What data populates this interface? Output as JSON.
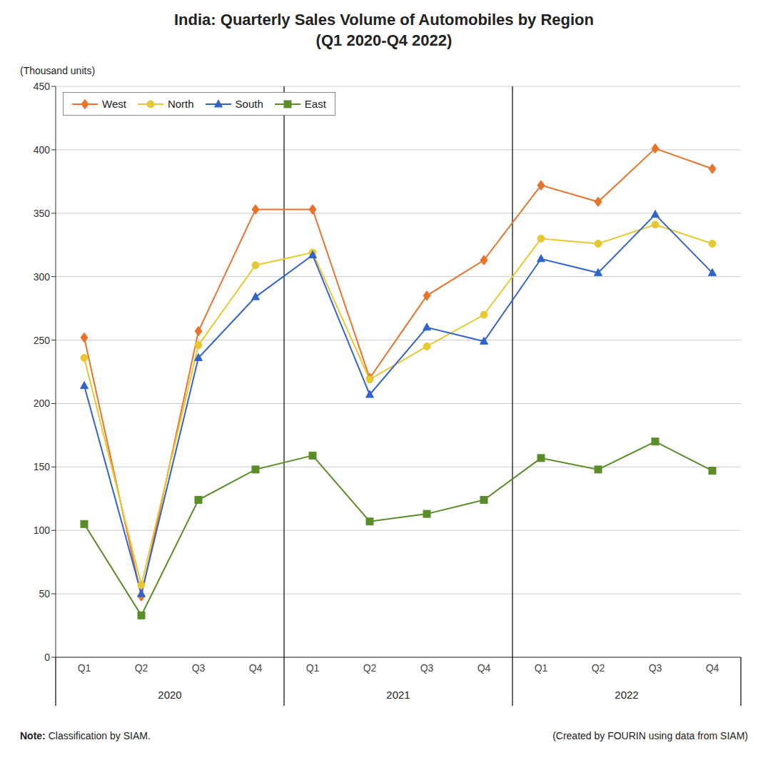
{
  "chart_data": {
    "type": "line",
    "title": "India: Quarterly Sales Volume of Automobiles by Region\n(Q1 2020-Q4 2022)",
    "ylabel": "(Thousand units)",
    "categories": [
      "Q1",
      "Q2",
      "Q3",
      "Q4",
      "Q1",
      "Q2",
      "Q3",
      "Q4",
      "Q1",
      "Q2",
      "Q3",
      "Q4"
    ],
    "category_groups": [
      "2020",
      "2021",
      "2022"
    ],
    "series": [
      {
        "name": "West",
        "color": "#E8732A",
        "marker": "diamond",
        "values": [
          252,
          48,
          257,
          353,
          353,
          220,
          285,
          313,
          372,
          359,
          401,
          385
        ]
      },
      {
        "name": "North",
        "color": "#E8C832",
        "marker": "circle",
        "values": [
          236,
          57,
          246,
          309,
          319,
          219,
          245,
          270,
          330,
          326,
          341,
          326
        ]
      },
      {
        "name": "South",
        "color": "#3264C8",
        "marker": "triangle",
        "values": [
          214,
          50,
          236,
          284,
          317,
          207,
          260,
          249,
          314,
          303,
          349,
          303
        ]
      },
      {
        "name": "East",
        "color": "#5A8C28",
        "marker": "square",
        "values": [
          105,
          33,
          124,
          148,
          159,
          107,
          113,
          124,
          157,
          148,
          170,
          147
        ]
      }
    ],
    "ylim": [
      0,
      450
    ],
    "yticks": [
      0,
      50,
      100,
      150,
      200,
      250,
      300,
      350,
      400,
      450
    ],
    "grid": true,
    "legend": "upper left",
    "annotations": [
      "Note: Classification by SIAM.",
      "(Created by FOURIN using data from SIAM)"
    ]
  }
}
